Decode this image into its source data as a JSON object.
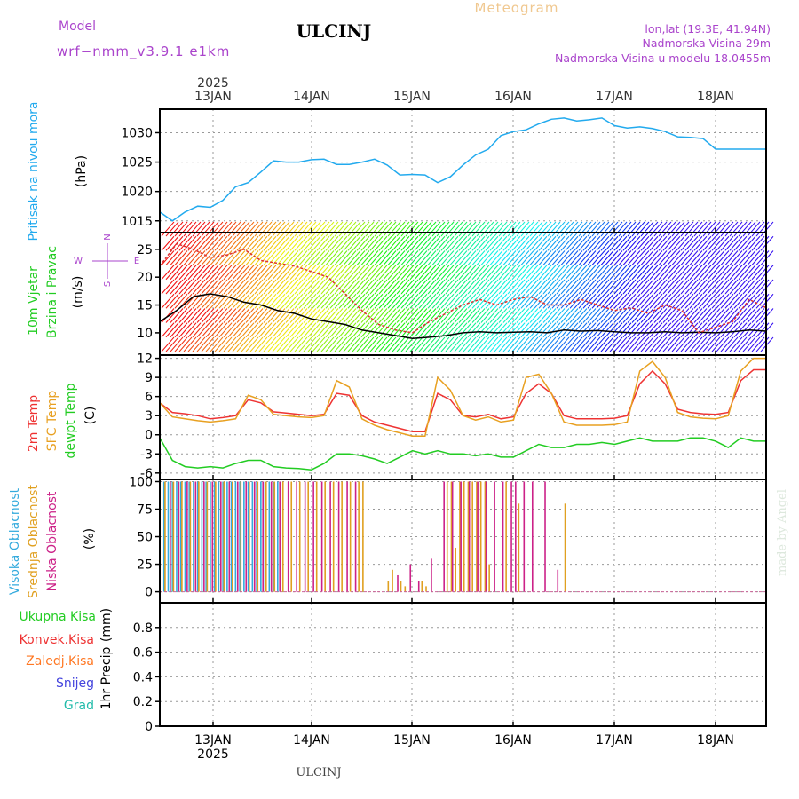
{
  "header": {
    "model_label": "Model",
    "model_name": "wrf−nmm_v3.9.1  e1km",
    "station": "ULCINJ",
    "meteogram": "Meteogram",
    "lonlat": "lon,lat (19.3E, 41.94N)",
    "elevation": "Nadmorska Visina 29m",
    "model_elevation": "Nadmorska Visina u modelu 18.0455m",
    "watermark": "made by Angel",
    "footer_station": "ULCINJ"
  },
  "colors": {
    "pressure": "#22aaee",
    "temp2m": "#ee3333",
    "sfc_temp": "#e8a020",
    "dewpoint": "#22cc22",
    "wind_speed_black": "#000000",
    "wind_speed_red": "#dd3333",
    "high_cloud": "#33aadd",
    "mid_cloud": "#e0a020",
    "low_cloud": "#cc2288",
    "legend_purple": "#aa44cc",
    "legend_total": "#22cc22",
    "legend_conv": "#ee3333",
    "legend_frozen": "#ff7722",
    "legend_snow": "#4444dd",
    "legend_hail": "#22bbaa"
  },
  "chart_data": [
    {
      "type": "line",
      "panel": "pressure",
      "ylabel_main": "Pritisak na nivou mora",
      "ylabel_unit": "(hPa)",
      "top_axis": {
        "year": "2025",
        "date_labels": [
          "13JAN",
          "14JAN",
          "15JAN",
          "16JAN",
          "17JAN",
          "18JAN"
        ]
      },
      "ylim": [
        1013,
        1034
      ],
      "yticks": [
        "1015",
        "1020",
        "1025",
        "1030"
      ],
      "grid": true,
      "series": [
        {
          "name": "",
          "x": [
            0,
            3,
            6,
            9,
            12,
            15,
            18,
            21,
            24,
            27,
            30,
            33,
            36,
            39,
            42,
            45,
            48,
            51,
            54,
            57,
            60,
            63,
            66,
            69,
            72,
            75,
            78,
            81,
            84,
            87,
            90,
            93,
            96,
            99,
            102,
            105,
            108,
            111,
            114,
            117,
            120,
            123,
            126,
            129,
            132,
            135,
            138,
            141,
            144
          ],
          "values": [
            1016.5,
            1015,
            1016.5,
            1017.5,
            1017.3,
            1018.5,
            1020.8,
            1021.5,
            1023.3,
            1025.2,
            1025,
            1025,
            1025.4,
            1025.5,
            1024.6,
            1024.6,
            1025,
            1025.5,
            1024.5,
            1022.8,
            1022.9,
            1022.8,
            1021.5,
            1022.5,
            1024.5,
            1026.2,
            1027.2,
            1029.5,
            1030.2,
            1030.5,
            1031.5,
            1032.3,
            1032.5,
            1032,
            1032.2,
            1032.5,
            1031.2,
            1030.8,
            1031,
            1030.7,
            1030.2,
            1029.3,
            1029.2,
            1029,
            1027.2,
            1027.2,
            1027.2,
            1027.2,
            1027.2
          ]
        }
      ]
    },
    {
      "type": "line",
      "panel": "wind",
      "ylabel_main": "10m Vjetar",
      "ylabel_main2": "Brzina i Pravac",
      "ylabel_unit": "(m/s)",
      "compass_n": "N",
      "compass_w": "W",
      "compass_e": "E",
      "compass_s": "S",
      "ylim": [
        6,
        28
      ],
      "yticks": [
        "10",
        "15",
        "20",
        "25"
      ],
      "grid": true,
      "series": [
        {
          "name": "",
          "x": [
            0,
            4,
            8,
            12,
            16,
            20,
            24,
            28,
            32,
            36,
            40,
            44,
            48,
            52,
            56,
            60,
            64,
            68,
            72,
            76,
            80,
            84,
            88,
            92,
            96,
            100,
            104,
            108,
            112,
            116,
            120,
            124,
            128,
            132,
            136,
            140,
            144
          ],
          "values": [
            12,
            14,
            16.5,
            17,
            16.5,
            15.5,
            15,
            14,
            13.5,
            12.5,
            12,
            11.5,
            10.5,
            10,
            9.5,
            9,
            9.2,
            9.5,
            10,
            10.2,
            10,
            10.1,
            10.2,
            10,
            10.5,
            10.3,
            10.4,
            10.2,
            10,
            10,
            10.2,
            10,
            10.1,
            10,
            10.2,
            10.5,
            10.3
          ]
        },
        {
          "name": "",
          "x": [
            0,
            4,
            8,
            12,
            16,
            20,
            24,
            28,
            32,
            36,
            40,
            44,
            48,
            52,
            56,
            60,
            64,
            68,
            72,
            76,
            80,
            84,
            88,
            92,
            96,
            100,
            104,
            108,
            112,
            116,
            120,
            124,
            128,
            132,
            136,
            140,
            144
          ],
          "values": [
            22,
            26,
            25,
            23.5,
            24,
            25,
            23,
            22.5,
            22,
            21,
            20,
            17,
            14,
            11.5,
            10.5,
            10,
            12,
            13.5,
            15,
            16,
            15,
            16,
            16.5,
            15,
            15,
            16,
            15,
            14,
            14.5,
            13.5,
            15,
            14,
            10,
            11,
            12,
            16,
            14.5
          ]
        }
      ]
    },
    {
      "type": "line",
      "panel": "temperature",
      "ylabel_t2m": "2m Temp",
      "ylabel_sfc": "SFC Temp",
      "ylabel_dew": "dewpt Temp",
      "ylabel_unit": "(C)",
      "ylim": [
        -7,
        12.5
      ],
      "yticks": [
        "-6",
        "-3",
        "0",
        "3",
        "6",
        "9",
        "12"
      ],
      "grid": true,
      "series": [
        {
          "name": "",
          "x": [
            0,
            3,
            6,
            9,
            12,
            15,
            18,
            21,
            24,
            27,
            30,
            33,
            36,
            39,
            42,
            45,
            48,
            51,
            54,
            57,
            60,
            63,
            66,
            69,
            72,
            75,
            78,
            81,
            84,
            87,
            90,
            93,
            96,
            99,
            102,
            105,
            108,
            111,
            114,
            117,
            120,
            123,
            126,
            129,
            132,
            135,
            138,
            141,
            144
          ],
          "values": [
            5,
            3.5,
            3.3,
            3,
            2.5,
            2.7,
            3,
            5.5,
            5,
            3.6,
            3.4,
            3.2,
            3,
            3.2,
            6.5,
            6.2,
            3,
            2,
            1.5,
            1,
            0.5,
            0.5,
            6.5,
            5.5,
            3,
            2.8,
            3.2,
            2.5,
            2.8,
            6.5,
            8,
            6.5,
            3,
            2.5,
            2.5,
            2.5,
            2.6,
            3,
            8,
            10,
            8,
            4,
            3.5,
            3.3,
            3.2,
            3.5,
            8.5,
            10.2,
            10.2
          ]
        },
        {
          "name": "",
          "x": [
            0,
            3,
            6,
            9,
            12,
            15,
            18,
            21,
            24,
            27,
            30,
            33,
            36,
            39,
            42,
            45,
            48,
            51,
            54,
            57,
            60,
            63,
            66,
            69,
            72,
            75,
            78,
            81,
            84,
            87,
            90,
            93,
            96,
            99,
            102,
            105,
            108,
            111,
            114,
            117,
            120,
            123,
            126,
            129,
            132,
            135,
            138,
            141,
            144
          ],
          "values": [
            5,
            2.8,
            2.5,
            2.2,
            2,
            2.2,
            2.5,
            6.2,
            5.5,
            3.2,
            3,
            2.8,
            2.7,
            3,
            8.5,
            7.5,
            2.5,
            1.5,
            0.8,
            0.3,
            -0.2,
            -0.2,
            9,
            7,
            3,
            2.3,
            2.8,
            2,
            2.3,
            9,
            9.5,
            6.5,
            2,
            1.5,
            1.5,
            1.5,
            1.6,
            2,
            10,
            11.5,
            9,
            3.5,
            2.8,
            2.6,
            2.5,
            3,
            10,
            12,
            12
          ]
        },
        {
          "name": "",
          "x": [
            0,
            3,
            6,
            9,
            12,
            15,
            18,
            21,
            24,
            27,
            30,
            33,
            36,
            39,
            42,
            45,
            48,
            51,
            54,
            57,
            60,
            63,
            66,
            69,
            72,
            75,
            78,
            81,
            84,
            87,
            90,
            93,
            96,
            99,
            102,
            105,
            108,
            111,
            114,
            117,
            120,
            123,
            126,
            129,
            132,
            135,
            138,
            141,
            144
          ],
          "values": [
            -0.5,
            -4,
            -5,
            -5.2,
            -5,
            -5.2,
            -4.5,
            -4,
            -4,
            -5,
            -5.2,
            -5.3,
            -5.5,
            -4.5,
            -3,
            -3,
            -3.3,
            -3.8,
            -4.5,
            -3.5,
            -2.5,
            -3,
            -2.5,
            -3,
            -3,
            -3.3,
            -3,
            -3.5,
            -3.5,
            -2.5,
            -1.5,
            -2,
            -2,
            -1.5,
            -1.5,
            -1.2,
            -1.5,
            -1,
            -0.5,
            -1,
            -1,
            -1,
            -0.5,
            -0.5,
            -1,
            -2,
            -0.5,
            -1,
            -1
          ]
        }
      ]
    },
    {
      "type": "bar",
      "panel": "cloud_cover",
      "ylabel_high": "Visoka Oblacnost",
      "ylabel_mid": "Srednja Oblacnost",
      "ylabel_low": "Niska Oblacnost",
      "ylabel_unit": "(%)",
      "ylim": [
        -10,
        102
      ],
      "yticks": [
        "0",
        "25",
        "50",
        "75",
        "100"
      ],
      "grid": true,
      "series": [
        {
          "name": "",
          "x": [
            1,
            2,
            3,
            4,
            5,
            6,
            7,
            8,
            9,
            10,
            11,
            12,
            13,
            14,
            15,
            16,
            17,
            18,
            19,
            20,
            21,
            22,
            23,
            24,
            25,
            26,
            27,
            28
          ],
          "values": [
            100,
            100,
            100,
            100,
            100,
            100,
            100,
            100,
            100,
            100,
            100,
            100,
            100,
            100,
            100,
            100,
            100,
            100,
            100,
            100,
            100,
            100,
            100,
            100,
            100,
            100,
            100,
            100
          ]
        },
        {
          "name": "",
          "x": [
            1,
            3,
            5,
            7,
            9,
            11,
            13,
            15,
            17,
            19,
            21,
            23,
            25,
            27,
            29,
            31,
            33,
            35,
            37,
            39,
            41,
            43,
            45,
            47,
            48,
            54,
            55,
            57,
            58,
            62,
            63,
            68,
            69,
            70,
            71,
            72,
            73,
            74,
            75,
            76,
            77,
            78,
            82,
            85,
            96
          ],
          "values": [
            100,
            100,
            100,
            100,
            100,
            100,
            100,
            100,
            100,
            100,
            100,
            100,
            100,
            100,
            100,
            100,
            100,
            100,
            100,
            100,
            100,
            100,
            100,
            100,
            100,
            10,
            20,
            10,
            5,
            10,
            5,
            100,
            100,
            40,
            100,
            100,
            100,
            100,
            100,
            100,
            100,
            25,
            100,
            80,
            80
          ]
        },
        {
          "name": "",
          "x": [
            2,
            4,
            6,
            8,
            10,
            12,
            14,
            16,
            18,
            20,
            22,
            24,
            26,
            28,
            30,
            32,
            34,
            36,
            38,
            40,
            42,
            44,
            46,
            56,
            59,
            61,
            64,
            67,
            69,
            71,
            73,
            75,
            77,
            79,
            81,
            83,
            84,
            86,
            88,
            91,
            94
          ],
          "values": [
            100,
            100,
            100,
            100,
            100,
            100,
            100,
            100,
            100,
            100,
            100,
            100,
            100,
            100,
            100,
            100,
            100,
            100,
            100,
            100,
            100,
            100,
            100,
            15,
            25,
            10,
            30,
            100,
            100,
            100,
            100,
            100,
            100,
            100,
            100,
            100,
            100,
            100,
            100,
            100,
            20
          ]
        }
      ]
    },
    {
      "type": "bar",
      "panel": "precipitation",
      "legend": [
        "Ukupna  Kisa",
        "Konvek.Kisa",
        "Zaledj.Kisa",
        "Snijeg",
        "Grad"
      ],
      "ylabel_main": "1hr Precip",
      "ylabel_unit": "(mm)",
      "ylim": [
        0,
        1
      ],
      "yticks": [
        "0",
        "0.2",
        "0.4",
        "0.6",
        "0.8"
      ],
      "bottom_axis": {
        "date_labels": [
          "13JAN",
          "14JAN",
          "15JAN",
          "16JAN",
          "17JAN",
          "18JAN"
        ],
        "year": "2025"
      },
      "grid": true,
      "series": []
    }
  ]
}
